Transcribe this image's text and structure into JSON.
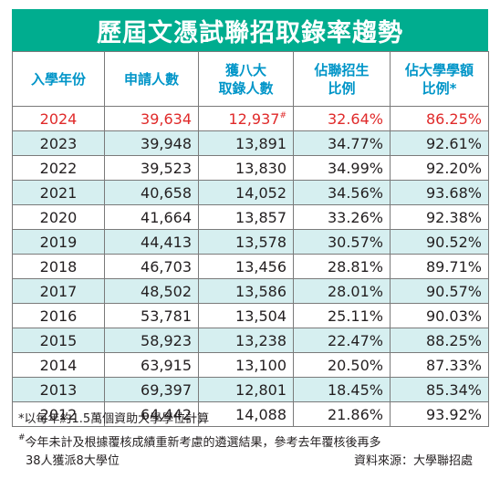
{
  "title": "歷屆文憑試聯招取錄率趨勢",
  "headers": {
    "year": "入學年份",
    "applicants": "申請人數",
    "admitted_line1": "獲八大",
    "admitted_line2": "取錄人數",
    "jupas_ratio_line1": "佔聯招生",
    "jupas_ratio_line2": "比例",
    "degree_ratio_line1": "佔大學學額",
    "degree_ratio_line2": "比例*"
  },
  "rows": [
    {
      "year": "2024",
      "applicants": "39,634",
      "admitted": "12,937",
      "admitted_mark": "#",
      "jupas_ratio": "32.64%",
      "degree_ratio": "86.25%"
    },
    {
      "year": "2023",
      "applicants": "39,948",
      "admitted": "13,891",
      "admitted_mark": "",
      "jupas_ratio": "34.77%",
      "degree_ratio": "92.61%"
    },
    {
      "year": "2022",
      "applicants": "39,523",
      "admitted": "13,830",
      "admitted_mark": "",
      "jupas_ratio": "34.99%",
      "degree_ratio": "92.20%"
    },
    {
      "year": "2021",
      "applicants": "40,658",
      "admitted": "14,052",
      "admitted_mark": "",
      "jupas_ratio": "34.56%",
      "degree_ratio": "93.68%"
    },
    {
      "year": "2020",
      "applicants": "41,664",
      "admitted": "13,857",
      "admitted_mark": "",
      "jupas_ratio": "33.26%",
      "degree_ratio": "92.38%"
    },
    {
      "year": "2019",
      "applicants": "44,413",
      "admitted": "13,578",
      "admitted_mark": "",
      "jupas_ratio": "30.57%",
      "degree_ratio": "90.52%"
    },
    {
      "year": "2018",
      "applicants": "46,703",
      "admitted": "13,456",
      "admitted_mark": "",
      "jupas_ratio": "28.81%",
      "degree_ratio": "89.71%"
    },
    {
      "year": "2017",
      "applicants": "48,502",
      "admitted": "13,586",
      "admitted_mark": "",
      "jupas_ratio": "28.01%",
      "degree_ratio": "90.57%"
    },
    {
      "year": "2016",
      "applicants": "53,781",
      "admitted": "13,504",
      "admitted_mark": "",
      "jupas_ratio": "25.11%",
      "degree_ratio": "90.03%"
    },
    {
      "year": "2015",
      "applicants": "58,923",
      "admitted": "13,238",
      "admitted_mark": "",
      "jupas_ratio": "22.47%",
      "degree_ratio": "88.25%"
    },
    {
      "year": "2014",
      "applicants": "63,915",
      "admitted": "13,100",
      "admitted_mark": "",
      "jupas_ratio": "20.50%",
      "degree_ratio": "87.33%"
    },
    {
      "year": "2013",
      "applicants": "69,397",
      "admitted": "12,801",
      "admitted_mark": "",
      "jupas_ratio": "18.45%",
      "degree_ratio": "85.34%"
    },
    {
      "year": "2012",
      "applicants": "64,442",
      "admitted": "14,088",
      "admitted_mark": "",
      "jupas_ratio": "21.86%",
      "degree_ratio": "93.92%"
    }
  ],
  "notes": {
    "note1": "*以每年約1.5萬個資助大學學位計算",
    "note2_mark": "#",
    "note2_line1": "今年未計及根據覆核成績重新考慮的遴選結果，參考去年覆核後再多",
    "note2_line2": "38人獲派8大學位",
    "source": "資料來源：大學聯招處"
  },
  "colors": {
    "banner": "#00ad8f",
    "header_text": "#0095c8",
    "highlight_text": "#e02a2a",
    "alt_row": "#d6eff0"
  }
}
